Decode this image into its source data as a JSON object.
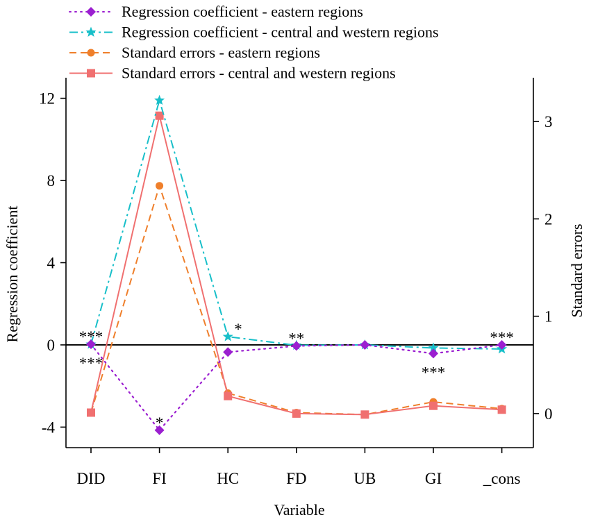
{
  "chart_data": {
    "type": "line",
    "xlabel": "Variable",
    "ylabel_left": "Regression coefficient",
    "ylabel_right": "Standard errors",
    "categories": [
      "DID",
      "FI",
      "HC",
      "FD",
      "UB",
      "GI",
      "_cons"
    ],
    "left_axis": {
      "range": [
        -5,
        13
      ],
      "ticks": [
        -4,
        0,
        4,
        8,
        12
      ],
      "tick_labels": [
        "-4",
        "0",
        "4",
        "8",
        "12"
      ]
    },
    "right_axis": {
      "range": [
        -0.35,
        3.45
      ],
      "ticks": [
        0,
        1,
        2,
        3
      ],
      "tick_labels": [
        "0",
        "1",
        "2",
        "3"
      ]
    },
    "zero_reference_line": 0,
    "series": [
      {
        "name": "Regression coefficient - eastern regions",
        "axis": "left",
        "marker": "diamond",
        "line_style": "dotted",
        "color": "#9b1fd0",
        "values": [
          0.03,
          -4.15,
          -0.35,
          -0.05,
          0.0,
          -0.42,
          0.0
        ]
      },
      {
        "name": "Regression coefficient - central and western regions",
        "axis": "left",
        "marker": "star",
        "line_style": "dash-dot",
        "color": "#17bfc9",
        "values": [
          0.03,
          11.9,
          0.4,
          -0.02,
          0.0,
          -0.15,
          -0.2
        ]
      },
      {
        "name": "Standard errors - eastern regions",
        "axis": "right",
        "marker": "circle",
        "line_style": "dashed",
        "color": "#ef7f2b",
        "values": [
          0.01,
          2.34,
          0.21,
          0.01,
          -0.01,
          0.12,
          0.05
        ]
      },
      {
        "name": "Standard errors - central and western regions",
        "axis": "right",
        "marker": "square",
        "line_style": "solid",
        "color": "#f07070",
        "values": [
          0.01,
          3.06,
          0.18,
          0.0,
          -0.01,
          0.08,
          0.04
        ]
      }
    ],
    "annotations": [
      {
        "text": "***",
        "category": "DID",
        "series": "Regression coefficient - eastern regions",
        "placement": "above"
      },
      {
        "text": "***",
        "category": "DID",
        "series": "Regression coefficient - eastern regions",
        "placement": "below"
      },
      {
        "text": "*",
        "category": "FI",
        "series": "Regression coefficient - eastern regions",
        "placement": "above"
      },
      {
        "text": "*",
        "category": "HC",
        "series": "Regression coefficient - central and western regions",
        "placement": "right"
      },
      {
        "text": "**",
        "category": "FD",
        "series": "Regression coefficient - eastern regions",
        "placement": "above"
      },
      {
        "text": "***",
        "category": "GI",
        "series": "Regression coefficient - eastern regions",
        "placement": "below"
      },
      {
        "text": "***",
        "category": "_cons",
        "series": "Regression coefficient - eastern regions",
        "placement": "above"
      }
    ]
  }
}
